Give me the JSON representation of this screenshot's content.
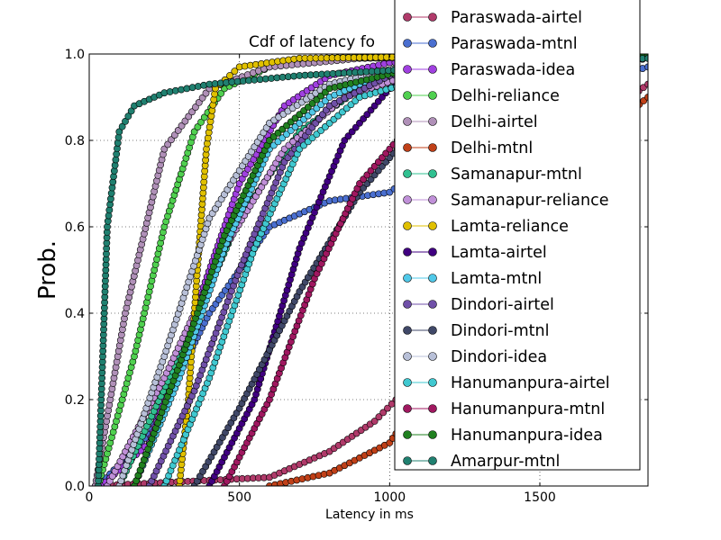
{
  "chart_data": {
    "type": "line",
    "title": "Cdf of latency fo",
    "xlabel": "Latency in ms",
    "ylabel": "Prob.",
    "xlim": [
      0,
      1860
    ],
    "ylim": [
      0,
      1.0
    ],
    "xticks": [
      0,
      500,
      1000,
      1500
    ],
    "yticks": [
      0.0,
      0.2,
      0.4,
      0.6,
      0.8,
      1.0
    ],
    "grid": true,
    "legend_position": "right",
    "series": [
      {
        "name": "Paraswada-airtel",
        "color": "#b03a6a",
        "x": [
          20,
          600,
          800,
          950,
          1050,
          1200,
          1400,
          1600,
          1860
        ],
        "y": [
          0.0,
          0.02,
          0.08,
          0.15,
          0.22,
          0.4,
          0.62,
          0.8,
          0.93
        ]
      },
      {
        "name": "Paraswada-mtnl",
        "color": "#4a6fd0",
        "x": [
          30,
          200,
          400,
          600,
          800,
          1000,
          1200,
          1500,
          1860
        ],
        "y": [
          0.0,
          0.12,
          0.4,
          0.6,
          0.66,
          0.68,
          0.78,
          0.9,
          0.97
        ]
      },
      {
        "name": "Paraswada-idea",
        "color": "#a040e0",
        "x": [
          40,
          200,
          350,
          500,
          650,
          800,
          1000,
          1860
        ],
        "y": [
          0.0,
          0.1,
          0.4,
          0.7,
          0.88,
          0.95,
          0.98,
          1.0
        ]
      },
      {
        "name": "Delhi-reliance",
        "color": "#50d050",
        "x": [
          30,
          150,
          250,
          350,
          450,
          600,
          800,
          1860
        ],
        "y": [
          0.0,
          0.3,
          0.6,
          0.82,
          0.92,
          0.97,
          0.99,
          1.0
        ]
      },
      {
        "name": "Delhi-airtel",
        "color": "#b090b8",
        "x": [
          20,
          120,
          250,
          400,
          600,
          900,
          1860
        ],
        "y": [
          0.0,
          0.4,
          0.78,
          0.92,
          0.97,
          0.99,
          1.0
        ]
      },
      {
        "name": "Delhi-mtnl",
        "color": "#c04018",
        "x": [
          600,
          800,
          1000,
          1200,
          1400,
          1600,
          1860
        ],
        "y": [
          0.0,
          0.03,
          0.1,
          0.3,
          0.55,
          0.75,
          0.9
        ]
      },
      {
        "name": "Samanapur-mtnl",
        "color": "#30c090",
        "x": [
          100,
          300,
          500,
          700,
          900,
          1200,
          1860
        ],
        "y": [
          0.0,
          0.3,
          0.62,
          0.82,
          0.92,
          0.97,
          1.0
        ]
      },
      {
        "name": "Samanapur-reliance",
        "color": "#c090d8",
        "x": [
          60,
          250,
          450,
          650,
          850,
          1100,
          1860
        ],
        "y": [
          0.0,
          0.25,
          0.55,
          0.78,
          0.9,
          0.96,
          1.0
        ]
      },
      {
        "name": "Lamta-reliance",
        "color": "#e0c000",
        "x": [
          300,
          330,
          360,
          390,
          420,
          500,
          700,
          1860
        ],
        "y": [
          0.0,
          0.2,
          0.5,
          0.78,
          0.92,
          0.97,
          0.99,
          1.0
        ]
      },
      {
        "name": "Lamta-airtel",
        "color": "#400080",
        "x": [
          400,
          550,
          700,
          850,
          1000,
          1200,
          1860
        ],
        "y": [
          0.0,
          0.2,
          0.55,
          0.8,
          0.92,
          0.97,
          1.0
        ]
      },
      {
        "name": "Lamta-mtnl",
        "color": "#50c8e8",
        "x": [
          150,
          300,
          450,
          600,
          800,
          1000,
          1860
        ],
        "y": [
          0.0,
          0.25,
          0.55,
          0.78,
          0.9,
          0.96,
          1.0
        ]
      },
      {
        "name": "Dindori-airtel",
        "color": "#7050a8",
        "x": [
          200,
          350,
          500,
          650,
          800,
          1000,
          1860
        ],
        "y": [
          0.0,
          0.22,
          0.5,
          0.75,
          0.88,
          0.95,
          1.0
        ]
      },
      {
        "name": "Dindori-mtnl",
        "color": "#404868",
        "x": [
          350,
          500,
          700,
          900,
          1100,
          1400,
          1860
        ],
        "y": [
          0.0,
          0.18,
          0.45,
          0.68,
          0.84,
          0.94,
          0.99
        ]
      },
      {
        "name": "Dindori-idea",
        "color": "#b8c0d8",
        "x": [
          100,
          250,
          400,
          600,
          800,
          1100,
          1860
        ],
        "y": [
          0.0,
          0.3,
          0.62,
          0.84,
          0.93,
          0.98,
          1.0
        ]
      },
      {
        "name": "Hanumanpura-airtel",
        "color": "#40c8d0",
        "x": [
          250,
          400,
          550,
          700,
          900,
          1200,
          1860
        ],
        "y": [
          0.0,
          0.25,
          0.55,
          0.78,
          0.9,
          0.96,
          1.0
        ]
      },
      {
        "name": "Hanumanpura-mtnl",
        "color": "#a01860",
        "x": [
          450,
          600,
          750,
          900,
          1100,
          1400,
          1860
        ],
        "y": [
          0.0,
          0.2,
          0.48,
          0.7,
          0.86,
          0.95,
          0.99
        ]
      },
      {
        "name": "Hanumanpura-idea",
        "color": "#208020",
        "x": [
          150,
          300,
          450,
          600,
          800,
          1100,
          1860
        ],
        "y": [
          0.0,
          0.28,
          0.58,
          0.8,
          0.92,
          0.97,
          1.0
        ]
      },
      {
        "name": "Amarpur-mtnl",
        "color": "#208070",
        "x": [
          30,
          60,
          100,
          150,
          250,
          400,
          700,
          1200,
          1860
        ],
        "y": [
          0.0,
          0.6,
          0.82,
          0.88,
          0.91,
          0.93,
          0.95,
          0.97,
          0.99
        ]
      }
    ]
  }
}
